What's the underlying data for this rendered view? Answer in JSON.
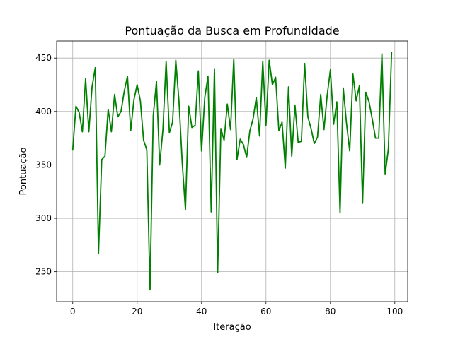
{
  "chart_data": {
    "type": "line",
    "title": "Pontuação da Busca em Profundidade",
    "xlabel": "Iteração",
    "ylabel": "Pontuação",
    "xlim": [
      -5,
      104
    ],
    "ylim": [
      222,
      466
    ],
    "xticks": [
      0,
      20,
      40,
      60,
      80,
      100
    ],
    "yticks": [
      250,
      300,
      350,
      400,
      450
    ],
    "grid": true,
    "series": [
      {
        "color": "#008000",
        "x": [
          0,
          1,
          2,
          3,
          4,
          5,
          6,
          7,
          8,
          9,
          10,
          11,
          12,
          13,
          14,
          15,
          16,
          17,
          18,
          19,
          20,
          21,
          22,
          23,
          24,
          25,
          26,
          27,
          28,
          29,
          30,
          31,
          32,
          33,
          34,
          35,
          36,
          37,
          38,
          39,
          40,
          41,
          42,
          43,
          44,
          45,
          46,
          47,
          48,
          49,
          50,
          51,
          52,
          53,
          54,
          55,
          56,
          57,
          58,
          59,
          60,
          61,
          62,
          63,
          64,
          65,
          66,
          67,
          68,
          69,
          70,
          71,
          72,
          73,
          74,
          75,
          76,
          77,
          78,
          79,
          80,
          81,
          82,
          83,
          84,
          85,
          86,
          87,
          88,
          89,
          90,
          91,
          92,
          93,
          94,
          95,
          96,
          97,
          98,
          99
        ],
        "y": [
          364,
          405,
          399,
          381,
          431,
          381,
          423,
          441,
          267,
          355,
          358,
          402,
          381,
          416,
          395,
          400,
          419,
          433,
          382,
          411,
          425,
          410,
          373,
          364,
          233,
          396,
          428,
          350,
          383,
          447,
          380,
          390,
          448,
          409,
          352,
          308,
          405,
          385,
          387,
          438,
          363,
          413,
          433,
          306,
          440,
          249,
          384,
          373,
          407,
          383,
          449,
          355,
          374,
          369,
          357,
          382,
          393,
          413,
          377,
          447,
          387,
          448,
          425,
          432,
          382,
          390,
          347,
          423,
          358,
          406,
          371,
          372,
          445,
          395,
          384,
          370,
          376,
          416,
          383,
          415,
          439,
          388,
          409,
          305,
          422,
          389,
          363,
          435,
          410,
          424,
          314,
          418,
          409,
          393,
          375,
          375,
          454,
          341,
          365,
          455
        ]
      }
    ]
  }
}
